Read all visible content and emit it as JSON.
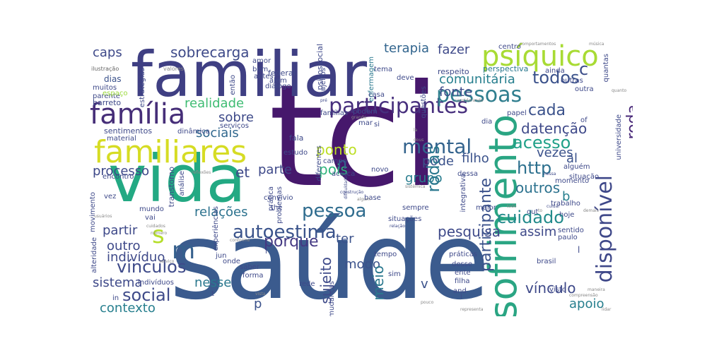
{
  "words": [
    {
      "text": "tci",
      "color": "#46186c"
    },
    {
      "text": "saúde",
      "color": "#3b5b8e"
    },
    {
      "text": "familiar",
      "color": "#3f3f83"
    },
    {
      "text": "vida",
      "color": "#23a983"
    },
    {
      "text": "familiares",
      "color": "#d6dc24"
    },
    {
      "text": "família",
      "color": "#462e78"
    },
    {
      "text": "sofrimento",
      "color": "#2aa583"
    },
    {
      "text": "psíquico",
      "color": "#a8db34"
    },
    {
      "text": "participantes",
      "color": "#472f7d"
    },
    {
      "text": "pessoas",
      "color": "#2f7e8e"
    },
    {
      "text": "autoestima",
      "color": "#3a538b"
    },
    {
      "text": "disponível",
      "color": "#3f4889"
    },
    {
      "text": "vínculos",
      "color": "#3e4a89"
    },
    {
      "text": "mental",
      "color": "#33638d"
    },
    {
      "text": "pessoa",
      "color": "#2f6c8e"
    },
    {
      "text": "cuidado",
      "color": "#238b8c"
    },
    {
      "text": "social",
      "color": "#3e4a89"
    },
    {
      "text": "sobrecarga",
      "color": "#3e4a89"
    },
    {
      "text": "terapia",
      "color": "#32658e"
    },
    {
      "text": "caps",
      "color": "#3e4989"
    },
    {
      "text": "comunitária",
      "color": "#277f8e"
    },
    {
      "text": "fonte",
      "color": "#3e4c8a"
    },
    {
      "text": "realidade",
      "color": "#3fbc73"
    },
    {
      "text": "cada",
      "color": "#3b528b"
    },
    {
      "text": "roda",
      "color": "#482878"
    },
    {
      "text": "datenção",
      "color": "#3e4989"
    },
    {
      "text": "acesso",
      "color": "#1fa088"
    },
    {
      "text": "http",
      "color": "#2d708e"
    },
    {
      "text": "todos",
      "color": "#3b528b"
    },
    {
      "text": "c",
      "color": "#3d4e8a"
    },
    {
      "text": "fazer",
      "color": "#3e4989"
    },
    {
      "text": "perspectiva",
      "color": "#2a788e"
    },
    {
      "text": "sobre",
      "color": "#3e4a89"
    },
    {
      "text": "sociais",
      "color": "#31688e"
    },
    {
      "text": "et",
      "color": "#3e4989"
    },
    {
      "text": "m",
      "color": "#35608d"
    },
    {
      "text": "s",
      "color": "#b5de2b"
    },
    {
      "text": "processo",
      "color": "#3e4989"
    },
    {
      "text": "parte",
      "color": "#3e4989"
    },
    {
      "text": "ponto",
      "color": "#bddf26"
    },
    {
      "text": "pois",
      "color": "#2fb47c"
    },
    {
      "text": "n",
      "color": "#31688e"
    },
    {
      "text": "pode",
      "color": "#3b528b"
    },
    {
      "text": "filho",
      "color": "#3b528b"
    },
    {
      "text": "grupo",
      "color": "#287c8e"
    },
    {
      "text": "rodas",
      "color": "#2a788e"
    },
    {
      "text": "outros",
      "color": "#2c728e"
    },
    {
      "text": "vezes",
      "color": "#3b528b"
    },
    {
      "text": "al",
      "color": "#3b528b"
    },
    {
      "text": "b",
      "color": "#277f8e"
    },
    {
      "text": "relações",
      "color": "#2c728e"
    },
    {
      "text": "partir",
      "color": "#3e4989"
    },
    {
      "text": "outro",
      "color": "#3e4989"
    },
    {
      "text": "indivíduo",
      "color": "#3e4989"
    },
    {
      "text": "porque",
      "color": "#443983"
    },
    {
      "text": "pesquisa",
      "color": "#3e4989"
    },
    {
      "text": "ter",
      "color": "#3b528b"
    },
    {
      "text": "modo",
      "color": "#3b528b"
    },
    {
      "text": "sujeito",
      "color": "#3e4a89"
    },
    {
      "text": "meio",
      "color": "#2a788e"
    },
    {
      "text": "participante",
      "color": "#3b528b"
    },
    {
      "text": "assim",
      "color": "#3e4989"
    },
    {
      "text": "vínculo",
      "color": "#3e4989"
    },
    {
      "text": "apoio",
      "color": "#277f8e"
    },
    {
      "text": "sistema",
      "color": "#3e4989"
    },
    {
      "text": "nesse",
      "color": "#2a788e"
    },
    {
      "text": "contexto",
      "color": "#277f8e"
    },
    {
      "text": "p",
      "color": "#3b528b"
    },
    {
      "text": "v",
      "color": "#3b528b"
    },
    {
      "text": "l",
      "color": "#3e4989"
    },
    {
      "text": "dias",
      "color": "#3b528b"
    },
    {
      "text": "muitos",
      "color": "#3e4989"
    },
    {
      "text": "parente",
      "color": "#3e4989"
    },
    {
      "text": "espaço",
      "color": "#9bd93c"
    },
    {
      "text": "ilustração",
      "color": "#666666"
    },
    {
      "text": "estratégias",
      "color": "#3e4989"
    },
    {
      "text": "valores",
      "color": "#888888"
    },
    {
      "text": "barreto",
      "color": "#3e4989"
    },
    {
      "text": "sentimentos",
      "color": "#3e4989"
    },
    {
      "text": "material",
      "color": "#3e4989"
    },
    {
      "text": "dinâmica",
      "color": "#3e4989"
    },
    {
      "text": "serviços",
      "color": "#3e4989"
    },
    {
      "text": "então",
      "color": "#3e4989"
    },
    {
      "text": "bem",
      "color": "#3e4989"
    },
    {
      "text": "antes",
      "color": "#3e4989"
    },
    {
      "text": "amor",
      "color": "#3e4989"
    },
    {
      "text": "federal",
      "color": "#3e4989"
    },
    {
      "text": "além",
      "color": "#3e4989"
    },
    {
      "text": "diálogo",
      "color": "#3e4989"
    },
    {
      "text": "psicossocial",
      "color": "#3e4989"
    },
    {
      "text": "sujeitos",
      "color": "#3e4989"
    },
    {
      "text": "enfermagem",
      "color": "#2a788e"
    },
    {
      "text": "tema",
      "color": "#3e4989"
    },
    {
      "text": "deve",
      "color": "#3e4989"
    },
    {
      "text": "questões",
      "color": "#3e4989"
    },
    {
      "text": "respeito",
      "color": "#3e4989"
    },
    {
      "text": "centro",
      "color": "#3e4989"
    },
    {
      "text": "comportamentos",
      "color": "#888888"
    },
    {
      "text": "música",
      "color": "#888888"
    },
    {
      "text": "ainda",
      "color": "#3e4989"
    },
    {
      "text": "quantas",
      "color": "#3e4989"
    },
    {
      "text": "outras",
      "color": "#3e4989"
    },
    {
      "text": "outra",
      "color": "#3e4989"
    },
    {
      "text": "quanto",
      "color": "#888888"
    },
    {
      "text": "considerando",
      "color": "#888888"
    },
    {
      "text": "papel",
      "color": "#3e4989"
    },
    {
      "text": "of",
      "color": "#3e4989"
    },
    {
      "text": "famílias",
      "color": "#3e4989"
    },
    {
      "text": "casa",
      "color": "#3e4989"
    },
    {
      "text": "grande",
      "color": "#888888"
    },
    {
      "text": "pré",
      "color": "#3e4989"
    },
    {
      "text": "si",
      "color": "#3e4989"
    },
    {
      "text": "mar",
      "color": "#3e4989"
    },
    {
      "text": "podem",
      "color": "#3e4989"
    },
    {
      "text": "dia",
      "color": "#3e4989"
    },
    {
      "text": "fala",
      "color": "#3e4989"
    },
    {
      "text": "estudo",
      "color": "#3e4989"
    },
    {
      "text": "transtorno",
      "color": "#3e4989"
    },
    {
      "text": "análise",
      "color": "#3e4989"
    },
    {
      "text": "reflexões",
      "color": "#888888"
    },
    {
      "text": "diferentes",
      "color": "#3e4989"
    },
    {
      "text": "campo",
      "color": "#3e4989"
    },
    {
      "text": "acerca",
      "color": "#3e4989"
    },
    {
      "text": "novo",
      "color": "#3e4989"
    },
    {
      "text": "dessa",
      "color": "#3e4989"
    },
    {
      "text": "alguém",
      "color": "#3e4989"
    },
    {
      "text": "situação",
      "color": "#3e4989"
    },
    {
      "text": "universidade",
      "color": "#3e4989"
    },
    {
      "text": "momento",
      "color": "#3e4989"
    },
    {
      "text": "nessa",
      "color": "#3e4989"
    },
    {
      "text": "dificuldades",
      "color": "#3e4989"
    },
    {
      "text": "dous",
      "color": "#888888"
    },
    {
      "text": "la",
      "color": "#888888"
    },
    {
      "text": "encontro",
      "color": "#3e4989"
    },
    {
      "text": "vez",
      "color": "#3e4989"
    },
    {
      "text": "movimento",
      "color": "#3e4989"
    },
    {
      "text": "experiências",
      "color": "#3e4989"
    },
    {
      "text": "convívio",
      "color": "#3e4989"
    },
    {
      "text": "prática",
      "color": "#3e4989"
    },
    {
      "text": "problemas",
      "color": "#3e4989"
    },
    {
      "text": "the",
      "color": "#3e4989"
    },
    {
      "text": "construção",
      "color": "#3e4989"
    },
    {
      "text": "base",
      "color": "#3e4989"
    },
    {
      "text": "integrativa",
      "color": "#3e4989"
    },
    {
      "text": "maior",
      "color": "#3e4989"
    },
    {
      "text": "trabalho",
      "color": "#3e4989"
    },
    {
      "text": "mundo",
      "color": "#3e4989"
    },
    {
      "text": "vai",
      "color": "#3e4989"
    },
    {
      "text": "sempre",
      "color": "#3e4989"
    },
    {
      "text": "out",
      "color": "#3e4989"
    },
    {
      "text": "to",
      "color": "#888888"
    },
    {
      "text": "cuidar",
      "color": "#3e4989"
    },
    {
      "text": "hoje",
      "color": "#3e4989"
    },
    {
      "text": "sentido",
      "color": "#3e4989"
    },
    {
      "text": "demais",
      "color": "#888888"
    },
    {
      "text": "paulo",
      "color": "#3e4989"
    },
    {
      "text": "situações",
      "color": "#3e4989"
    },
    {
      "text": "relação",
      "color": "#3e4989"
    },
    {
      "text": "alteridade",
      "color": "#3e4989"
    },
    {
      "text": "usuários",
      "color": "#888888"
    },
    {
      "text": "número",
      "color": "#888888"
    },
    {
      "text": "cuidados",
      "color": "#888888"
    },
    {
      "text": "conforme",
      "color": "#888888"
    },
    {
      "text": "jun",
      "color": "#3e4989"
    },
    {
      "text": "onde",
      "color": "#3e4989"
    },
    {
      "text": "tempo",
      "color": "#3e4989"
    },
    {
      "text": "práticas",
      "color": "#3e4989"
    },
    {
      "text": "desse",
      "color": "#3e4989"
    },
    {
      "text": "ente",
      "color": "#3e4989"
    },
    {
      "text": "filha",
      "color": "#3e4989"
    },
    {
      "text": "and",
      "color": "#3e4989"
    },
    {
      "text": "i",
      "color": "#3e4989"
    },
    {
      "text": "sim",
      "color": "#3e4989"
    },
    {
      "text": "visto",
      "color": "#3e4989"
    },
    {
      "text": "brasil",
      "color": "#3e4989"
    },
    {
      "text": "f",
      "color": "#3e4989"
    },
    {
      "text": "saber",
      "color": "#3e4989"
    },
    {
      "text": "forma",
      "color": "#3e4989"
    },
    {
      "text": "mudanças",
      "color": "#3e4989"
    },
    {
      "text": "rede",
      "color": "#3e4989"
    },
    {
      "text": "indivíduos",
      "color": "#3e4989"
    },
    {
      "text": "serviço",
      "color": "#888888"
    },
    {
      "text": "in",
      "color": "#3e4989"
    },
    {
      "text": "t",
      "color": "#3e4989"
    },
    {
      "text": "vista",
      "color": "#888888"
    },
    {
      "text": "pouco",
      "color": "#888888"
    },
    {
      "text": "representa",
      "color": "#888888"
    },
    {
      "text": "maneira",
      "color": "#888888"
    },
    {
      "text": "compreensão",
      "color": "#888888"
    },
    {
      "text": "lidar",
      "color": "#888888"
    },
    {
      "text": "sistêmica",
      "color": "#888888"
    },
    {
      "text": "algum",
      "color": "#888888"
    },
    {
      "text": "todo",
      "color": "#888888"
    }
  ]
}
